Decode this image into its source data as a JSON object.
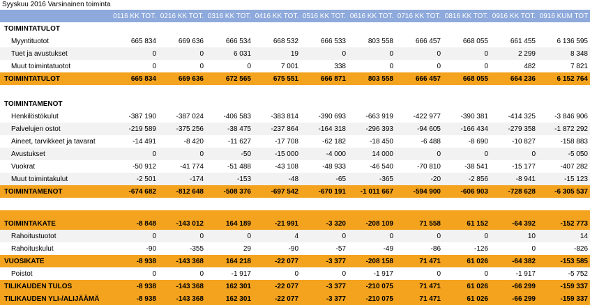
{
  "title": "Syyskuu 2016 Varsinainen toiminta",
  "columns": [
    "0116 KK TOT.",
    "0216 KK TOT.",
    "0316 KK TOT.",
    "0416 KK TOT.",
    "0516 KK TOT.",
    "0616 KK TOT.",
    "0716 KK TOT.",
    "0816 KK TOT.",
    "0916 KK TOT.",
    "0916 KUM TOT"
  ],
  "rows": [
    {
      "type": "section",
      "label": "TOIMINTATULOT"
    },
    {
      "type": "detail",
      "label": "Myyntituotot",
      "values": [
        "665 834",
        "669 636",
        "666 534",
        "668 532",
        "666 533",
        "803 558",
        "666 457",
        "668 055",
        "661 455",
        "6 136 595"
      ]
    },
    {
      "type": "detail",
      "label": "Tuet ja avustukset",
      "values": [
        "0",
        "0",
        "6 031",
        "19",
        "0",
        "0",
        "0",
        "0",
        "2 299",
        "8 348"
      ]
    },
    {
      "type": "detail",
      "label": "Muut toimintatuotot",
      "values": [
        "0",
        "0",
        "0",
        "7 001",
        "338",
        "0",
        "0",
        "0",
        "482",
        "7 821"
      ]
    },
    {
      "type": "total",
      "label": "TOIMINTATULOT",
      "values": [
        "665 834",
        "669 636",
        "672 565",
        "675 551",
        "666 871",
        "803 558",
        "666 457",
        "668 055",
        "664 236",
        "6 152 764"
      ]
    },
    {
      "type": "blank"
    },
    {
      "type": "section",
      "label": "TOIMINTAMENOT"
    },
    {
      "type": "detail",
      "label": "Henkilöstökulut",
      "values": [
        "-387 190",
        "-387 024",
        "-406 583",
        "-383 814",
        "-390 693",
        "-663 919",
        "-422 977",
        "-390 381",
        "-414 325",
        "-3 846 906"
      ]
    },
    {
      "type": "detail",
      "label": "Palvelujen ostot",
      "values": [
        "-219 589",
        "-375 256",
        "-38 475",
        "-237 864",
        "-164 318",
        "-296 393",
        "-94 605",
        "-166 434",
        "-279 358",
        "-1 872 292"
      ]
    },
    {
      "type": "detail",
      "label": "Aineet, tarvikkeet ja tavarat",
      "values": [
        "-14 491",
        "-8 420",
        "-11 627",
        "-17 708",
        "-62 182",
        "-18 450",
        "-6 488",
        "-8 690",
        "-10 827",
        "-158 883"
      ]
    },
    {
      "type": "detail",
      "label": "Avustukset",
      "values": [
        "0",
        "0",
        "-50",
        "-15 000",
        "-4 000",
        "14 000",
        "0",
        "0",
        "0",
        "-5 050"
      ]
    },
    {
      "type": "detail",
      "label": "Vuokrat",
      "values": [
        "-50 912",
        "-41 774",
        "-51 488",
        "-43 108",
        "-48 933",
        "-46 540",
        "-70 810",
        "-38 541",
        "-15 177",
        "-407 282"
      ]
    },
    {
      "type": "detail",
      "label": "Muut toimintakulut",
      "values": [
        "-2 501",
        "-174",
        "-153",
        "-48",
        "-65",
        "-365",
        "-20",
        "-2 856",
        "-8 941",
        "-15 123"
      ]
    },
    {
      "type": "total",
      "label": "TOIMINTAMENOT",
      "values": [
        "-674 682",
        "-812 648",
        "-508 376",
        "-697 542",
        "-670 191",
        "-1 011 667",
        "-594 900",
        "-606 903",
        "-728 628",
        "-6 305 537"
      ]
    },
    {
      "type": "blank"
    },
    {
      "type": "band"
    },
    {
      "type": "total",
      "label": "TOIMINTAKATE",
      "values": [
        "-8 848",
        "-143 012",
        "164 189",
        "-21 991",
        "-3 320",
        "-208 109",
        "71 558",
        "61 152",
        "-64 392",
        "-152 773"
      ]
    },
    {
      "type": "detail",
      "label": "Rahoitustuotot",
      "values": [
        "0",
        "0",
        "0",
        "4",
        "0",
        "0",
        "0",
        "0",
        "10",
        "14"
      ]
    },
    {
      "type": "detail",
      "label": "Rahoituskulut",
      "values": [
        "-90",
        "-355",
        "29",
        "-90",
        "-57",
        "-49",
        "-86",
        "-126",
        "0",
        "-826"
      ]
    },
    {
      "type": "total",
      "label": "VUOSIKATE",
      "values": [
        "-8 938",
        "-143 368",
        "164 218",
        "-22 077",
        "-3 377",
        "-208 158",
        "71 471",
        "61 026",
        "-64 382",
        "-153 585"
      ]
    },
    {
      "type": "detail",
      "label": "Poistot",
      "values": [
        "0",
        "0",
        "-1 917",
        "0",
        "0",
        "-1 917",
        "0",
        "0",
        "-1 917",
        "-5 752"
      ]
    },
    {
      "type": "total",
      "label": "TILIKAUDEN TULOS",
      "values": [
        "-8 938",
        "-143 368",
        "162 301",
        "-22 077",
        "-3 377",
        "-210 075",
        "71 471",
        "61 026",
        "-66 299",
        "-159 337"
      ]
    },
    {
      "type": "total",
      "label": "TILIKAUDEN YLI-/ALIJÄÄMÄ",
      "values": [
        "-8 938",
        "-143 368",
        "162 301",
        "-22 077",
        "-3 377",
        "-210 075",
        "71 471",
        "61 026",
        "-66 299",
        "-159 337"
      ]
    }
  ]
}
